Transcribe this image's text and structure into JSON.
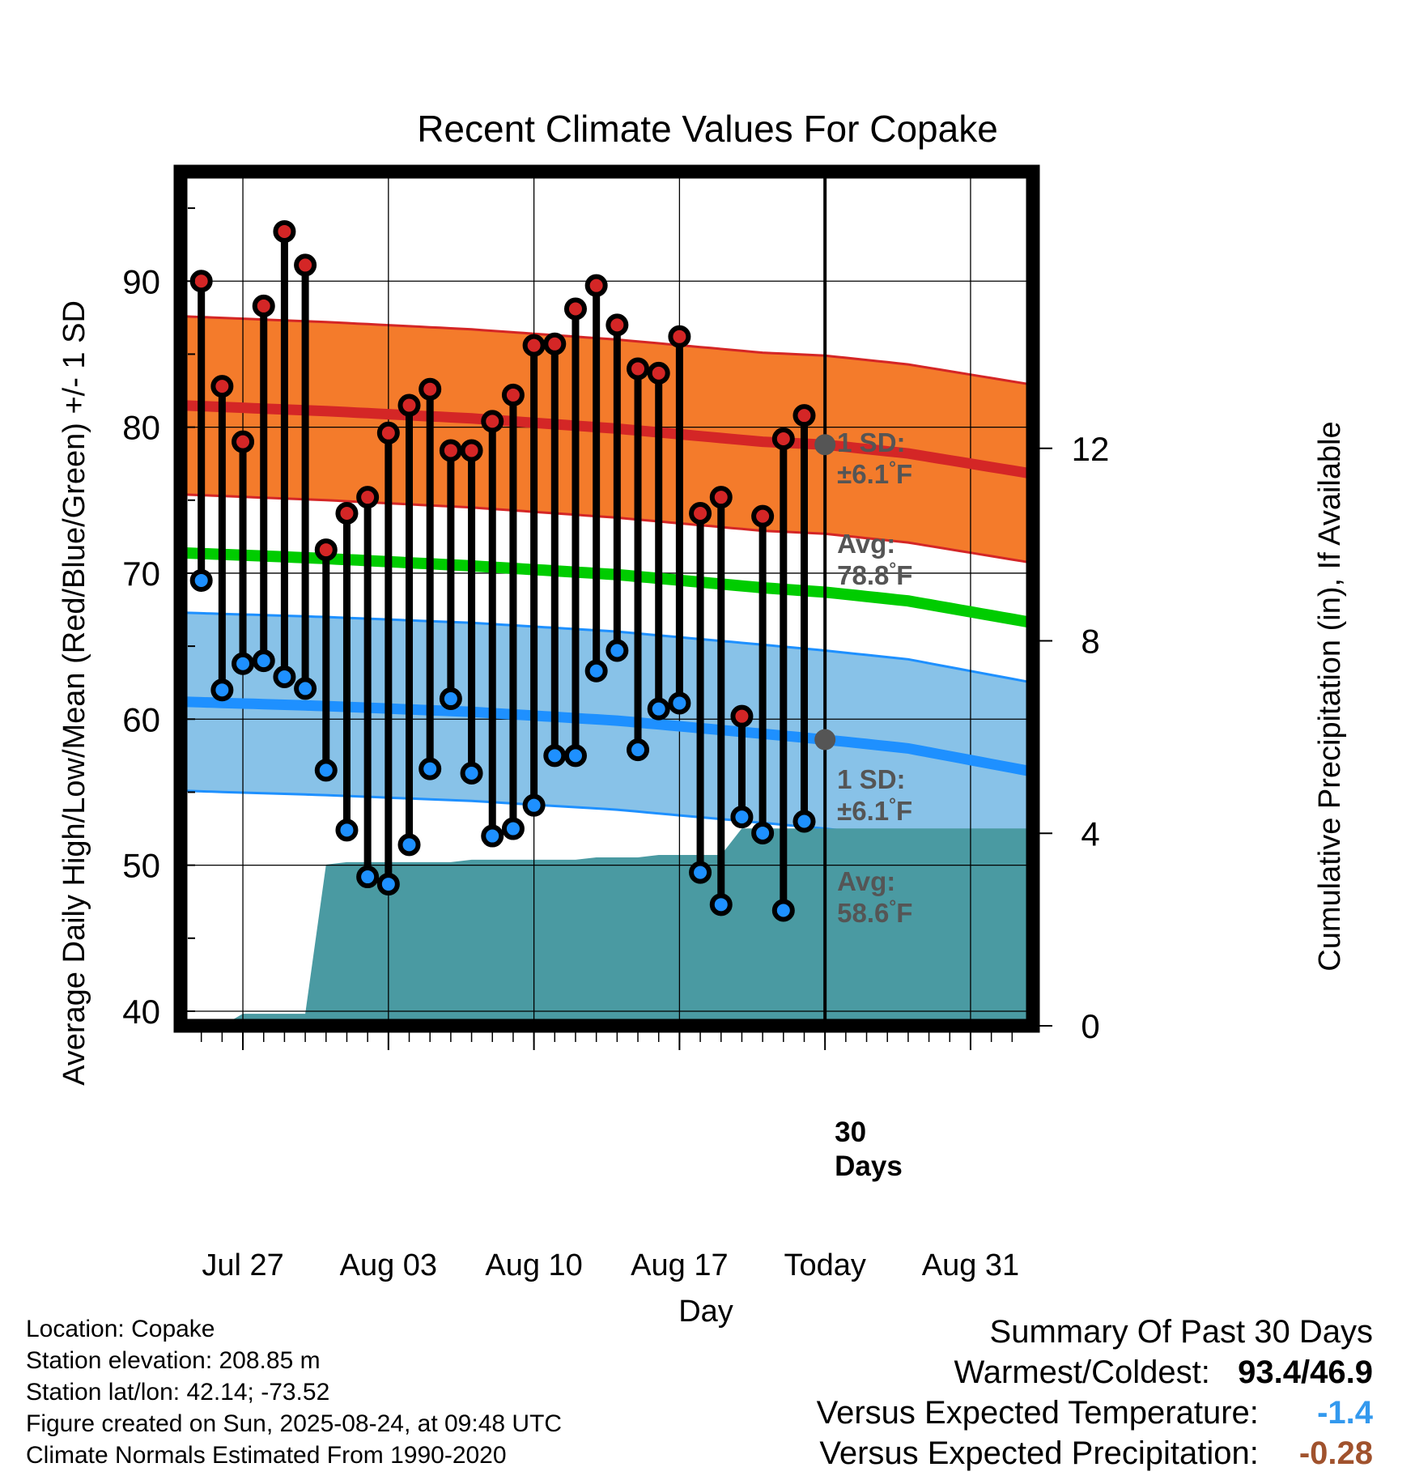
{
  "chart_data": {
    "type": "line",
    "title": "Recent Climate Values For Copake",
    "xlabel": "Day",
    "ylabel": "Average Daily High/Low/Mean (Red/Blue/Green) +/- 1 SD",
    "y2label": "Cumulative Precipitation (in), If Available",
    "x_tick_labels": [
      "Jul 27",
      "Aug 03",
      "Aug 10",
      "Aug 17",
      "Today",
      "Aug 31"
    ],
    "x_tick_dates": [
      "2025-07-27",
      "2025-08-03",
      "2025-08-10",
      "2025-08-17",
      "2025-08-24",
      "2025-08-31"
    ],
    "x_range": [
      "2025-07-24",
      "2025-09-03"
    ],
    "ylim": [
      39,
      97.5
    ],
    "y_ticks": [
      40,
      50,
      60,
      70,
      80,
      90
    ],
    "y2lim": [
      0,
      17.75
    ],
    "y2_ticks": [
      0,
      4,
      8,
      12
    ],
    "grid": true,
    "today": "2025-08-24",
    "today_label": [
      "30",
      "Days"
    ],
    "colors": {
      "high_band": "#f47b2b",
      "high_mean": "#d42626",
      "low_band": "#88c2e8",
      "low_mean": "#1e90ff",
      "mean": "#00cc00",
      "precip": "#4a9aa2",
      "high_dot": "#d42626",
      "low_dot": "#1e90ff",
      "today_dot": "#555555",
      "annotation": "#555555"
    },
    "normals": {
      "dates": [
        "2025-07-24",
        "2025-07-31",
        "2025-08-07",
        "2025-08-14",
        "2025-08-21",
        "2025-08-24",
        "2025-08-28",
        "2025-09-03"
      ],
      "high_mean": [
        81.5,
        81.1,
        80.6,
        79.9,
        79.0,
        78.8,
        78.2,
        76.8
      ],
      "low_mean": [
        61.2,
        60.9,
        60.5,
        59.9,
        59.0,
        58.6,
        58.0,
        56.4
      ],
      "mean": [
        71.4,
        71.0,
        70.5,
        69.9,
        69.0,
        68.7,
        68.1,
        66.6
      ],
      "high_sd": 6.1,
      "low_sd": 6.1
    },
    "series": [
      {
        "name": "High",
        "dates": [
          "2025-07-25",
          "2025-07-26",
          "2025-07-27",
          "2025-07-28",
          "2025-07-29",
          "2025-07-30",
          "2025-07-31",
          "2025-08-01",
          "2025-08-02",
          "2025-08-03",
          "2025-08-04",
          "2025-08-05",
          "2025-08-06",
          "2025-08-07",
          "2025-08-08",
          "2025-08-09",
          "2025-08-10",
          "2025-08-11",
          "2025-08-12",
          "2025-08-13",
          "2025-08-14",
          "2025-08-15",
          "2025-08-16",
          "2025-08-17",
          "2025-08-18",
          "2025-08-19",
          "2025-08-20",
          "2025-08-21",
          "2025-08-22",
          "2025-08-23"
        ],
        "values": [
          90.0,
          82.8,
          79.0,
          88.3,
          93.4,
          91.1,
          71.6,
          74.1,
          75.2,
          79.6,
          81.5,
          82.6,
          78.4,
          78.4,
          80.4,
          82.2,
          85.6,
          85.7,
          88.1,
          89.7,
          87.0,
          84.0,
          83.7,
          86.2,
          74.1,
          75.2,
          60.2,
          73.9,
          79.2,
          80.8
        ]
      },
      {
        "name": "Low",
        "dates": [
          "2025-07-25",
          "2025-07-26",
          "2025-07-27",
          "2025-07-28",
          "2025-07-29",
          "2025-07-30",
          "2025-07-31",
          "2025-08-01",
          "2025-08-02",
          "2025-08-03",
          "2025-08-04",
          "2025-08-05",
          "2025-08-06",
          "2025-08-07",
          "2025-08-08",
          "2025-08-09",
          "2025-08-10",
          "2025-08-11",
          "2025-08-12",
          "2025-08-13",
          "2025-08-14",
          "2025-08-15",
          "2025-08-16",
          "2025-08-17",
          "2025-08-18",
          "2025-08-19",
          "2025-08-20",
          "2025-08-21",
          "2025-08-22",
          "2025-08-23"
        ],
        "values": [
          69.5,
          62.0,
          63.8,
          64.0,
          62.9,
          62.1,
          56.5,
          52.4,
          49.2,
          48.7,
          51.4,
          56.6,
          61.4,
          56.3,
          52.0,
          52.5,
          54.1,
          57.5,
          57.5,
          63.3,
          64.7,
          57.9,
          60.7,
          61.1,
          49.5,
          47.3,
          53.3,
          52.2,
          46.9,
          53.0
        ]
      },
      {
        "name": "Precipitation",
        "points": [
          [
            "2025-07-24",
            0.0
          ],
          [
            "2025-07-26",
            0.0
          ],
          [
            "2025-07-27",
            0.25
          ],
          [
            "2025-07-30",
            0.25
          ],
          [
            "2025-07-31",
            3.35
          ],
          [
            "2025-08-01",
            3.4
          ],
          [
            "2025-08-06",
            3.4
          ],
          [
            "2025-08-07",
            3.45
          ],
          [
            "2025-08-12",
            3.45
          ],
          [
            "2025-08-13",
            3.5
          ],
          [
            "2025-08-15",
            3.5
          ],
          [
            "2025-08-16",
            3.55
          ],
          [
            "2025-08-19",
            3.55
          ],
          [
            "2025-08-20",
            4.1
          ],
          [
            "2025-09-03",
            4.1
          ]
        ]
      }
    ],
    "annotations": {
      "high": {
        "sd_label": "1 SD:",
        "sd_value": "±6.1",
        "avg_label": "Avg:",
        "avg_value": "78.8",
        "unit": "°F"
      },
      "low": {
        "sd_label": "1 SD:",
        "sd_value": "±6.1",
        "avg_label": "Avg:",
        "avg_value": "58.6",
        "unit": "°F"
      }
    }
  },
  "info": {
    "location": "Location: Copake",
    "elevation": "Station elevation: 208.85 m",
    "latlon": "Station lat/lon: 42.14; -73.52",
    "created": "Figure created on Sun, 2025-08-24, at 09:48 UTC",
    "normals": "Climate Normals Estimated From 1990-2020"
  },
  "summary": {
    "heading": "Summary Of Past 30 Days",
    "warmest_label": "Warmest/Coldest:",
    "warmest_value": "93.4/46.9",
    "temp_label": "Versus Expected Temperature:",
    "temp_value": "-1.4",
    "temp_color": "#3399ee",
    "precip_label": "Versus Expected Precipitation:",
    "precip_value": "-0.28",
    "precip_color": "#a0522d"
  }
}
